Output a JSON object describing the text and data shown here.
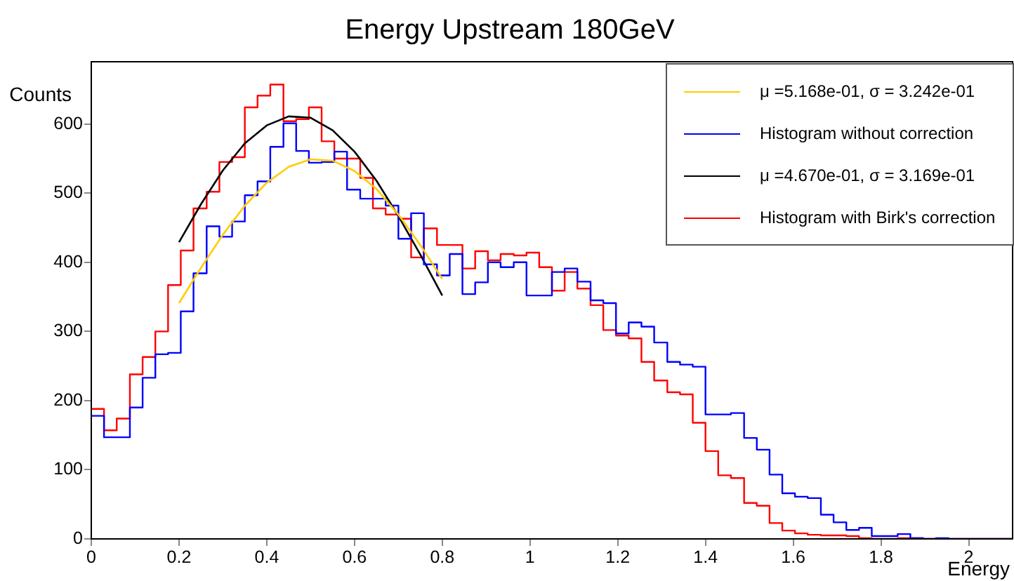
{
  "chart_data": {
    "type": "histogram",
    "title": "Energy Upstream 180GeV",
    "xlabel": "Energy",
    "ylabel": "Counts",
    "bins": [
      0,
      0.029,
      0.058,
      0.088,
      0.117,
      0.146,
      0.175,
      0.204,
      0.233,
      0.263,
      0.292,
      0.321,
      0.35,
      0.379,
      0.408,
      0.438,
      0.467,
      0.496,
      0.525,
      0.554,
      0.583,
      0.613,
      0.642,
      0.671,
      0.7,
      0.729,
      0.758,
      0.788,
      0.817,
      0.846,
      0.875,
      0.904,
      0.933,
      0.963,
      0.992,
      1.021,
      1.05,
      1.079,
      1.108,
      1.138,
      1.167,
      1.196,
      1.225,
      1.254,
      1.283,
      1.313,
      1.342,
      1.371,
      1.4,
      1.429,
      1.458,
      1.488,
      1.517,
      1.546,
      1.575,
      1.604,
      1.633,
      1.663,
      1.692,
      1.721,
      1.75,
      1.779,
      1.808,
      1.838,
      1.867,
      1.896,
      1.925,
      1.954,
      1.983,
      2.013,
      2.042,
      2.071,
      2.1
    ],
    "xlim": [
      0,
      2.1
    ],
    "xticks": [
      0,
      0.2,
      0.4,
      0.6,
      0.8,
      1,
      1.2,
      1.4,
      1.6,
      1.8,
      2
    ],
    "ylim": [
      0,
      690
    ],
    "yticks": [
      0,
      100,
      200,
      300,
      400,
      500,
      600
    ],
    "legend": "top right",
    "series": [
      {
        "name": "μ =5.168e-01, σ = 3.242e-01",
        "type": "line",
        "color": "#ffcc00",
        "x": [
          0.2,
          0.25,
          0.3,
          0.35,
          0.4,
          0.45,
          0.5,
          0.55,
          0.6,
          0.65,
          0.7,
          0.75,
          0.8
        ],
        "values": [
          341,
          392,
          440,
          482,
          515,
          538,
          549,
          547,
          532,
          506,
          469,
          425,
          376
        ]
      },
      {
        "name": "Histogram without correction",
        "color": "#0000ff",
        "values": [
          178,
          147,
          147,
          190,
          233,
          267,
          269,
          329,
          384,
          452,
          437,
          459,
          497,
          517,
          567,
          601,
          561,
          544,
          545,
          560,
          505,
          492,
          492,
          482,
          434,
          471,
          397,
          381,
          412,
          354,
          371,
          400,
          393,
          400,
          352,
          352,
          386,
          391,
          372,
          345,
          341,
          297,
          313,
          307,
          284,
          256,
          252,
          249,
          180,
          180,
          182,
          146,
          129,
          93,
          66,
          61,
          59,
          35,
          24,
          13,
          16,
          4,
          4,
          7,
          1,
          0,
          1,
          0,
          0,
          0,
          0,
          0
        ]
      },
      {
        "name": "μ =4.670e-01, σ = 3.169e-01",
        "type": "line",
        "color": "#000000",
        "x": [
          0.2,
          0.25,
          0.3,
          0.35,
          0.4,
          0.45,
          0.5,
          0.55,
          0.6,
          0.65,
          0.7,
          0.75,
          0.8
        ],
        "values": [
          429,
          484,
          533,
          572,
          598,
          611,
          609,
          591,
          560,
          518,
          467,
          411,
          352
        ]
      },
      {
        "name": "Histogram with Birk's correction",
        "color": "#ff0000",
        "values": [
          188,
          157,
          174,
          238,
          263,
          300,
          367,
          417,
          478,
          502,
          545,
          552,
          624,
          641,
          657,
          604,
          607,
          624,
          575,
          550,
          550,
          522,
          478,
          469,
          463,
          407,
          449,
          425,
          425,
          391,
          416,
          403,
          412,
          410,
          414,
          393,
          359,
          386,
          362,
          338,
          302,
          294,
          290,
          256,
          229,
          212,
          209,
          168,
          127,
          92,
          88,
          52,
          48,
          23,
          12,
          8,
          6,
          5,
          5,
          4,
          1,
          0,
          0,
          1,
          1,
          0,
          0,
          0,
          0,
          0,
          0,
          0
        ]
      }
    ]
  }
}
